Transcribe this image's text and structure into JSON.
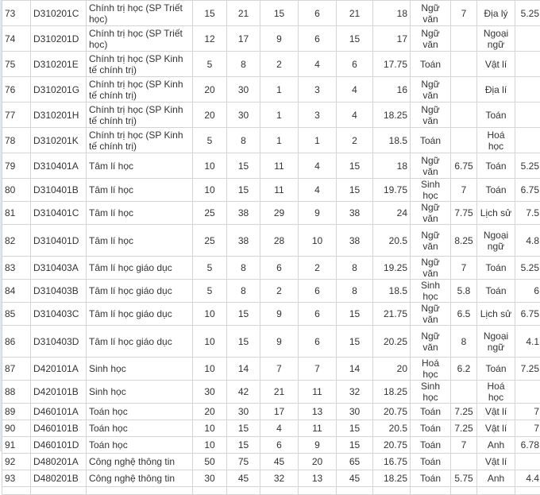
{
  "rows": [
    [
      "73",
      "D310201C",
      "Chính trị học (SP Triết học)",
      "15",
      "21",
      "15",
      "6",
      "21",
      "18",
      "Ngữ văn",
      "7",
      "Địa lý",
      "5.25"
    ],
    [
      "74",
      "D310201D",
      "Chính trị học (SP Triết học)",
      "12",
      "17",
      "9",
      "6",
      "15",
      "17",
      "Ngữ văn",
      "",
      "Ngoại ngữ",
      ""
    ],
    [
      "75",
      "D310201E",
      "Chính trị học (SP Kinh tế chính trị)",
      "5",
      "8",
      "2",
      "4",
      "6",
      "17.75",
      "Toán",
      "",
      "Vật lí",
      ""
    ],
    [
      "76",
      "D310201G",
      "Chính trị học (SP Kinh tế chính trị)",
      "20",
      "30",
      "1",
      "3",
      "4",
      "16",
      "Ngữ văn",
      "",
      "Địa lí",
      ""
    ],
    [
      "77",
      "D310201H",
      "Chính trị học (SP Kinh tế chính trị)",
      "20",
      "30",
      "1",
      "3",
      "4",
      "18.25",
      "Ngữ văn",
      "",
      "Toán",
      ""
    ],
    [
      "78",
      "D310201K",
      "Chính trị học (SP Kinh tế chính trị)",
      "5",
      "8",
      "1",
      "1",
      "2",
      "18.5",
      "Toán",
      "",
      "Hoá học",
      ""
    ],
    [
      "79",
      "D310401A",
      "Tâm lí học",
      "10",
      "15",
      "11",
      "4",
      "15",
      "18",
      "Ngữ văn",
      "6.75",
      "Toán",
      "5.25"
    ],
    [
      "80",
      "D310401B",
      "Tâm lí học",
      "10",
      "15",
      "11",
      "4",
      "15",
      "19.75",
      "Sinh học",
      "7",
      "Toán",
      "6.75"
    ],
    [
      "81",
      "D310401C",
      "Tâm lí học",
      "25",
      "38",
      "29",
      "9",
      "38",
      "24",
      "Ngữ văn",
      "7.75",
      "Lịch sử",
      "7.5"
    ],
    [
      "82",
      "D310401D",
      "Tâm lí học",
      "25",
      "38",
      "28",
      "10",
      "38",
      "20.5",
      "Ngữ văn",
      "8.25",
      "Ngoại ngữ",
      "4.8"
    ],
    [
      "83",
      "D310403A",
      "Tâm lí học giáo dục",
      "5",
      "8",
      "6",
      "2",
      "8",
      "19.25",
      "Ngữ văn",
      "7",
      "Toán",
      "5.25"
    ],
    [
      "84",
      "D310403B",
      "Tâm lí học giáo dục",
      "5",
      "8",
      "2",
      "6",
      "8",
      "18.5",
      "Sinh học",
      "5.8",
      "Toán",
      "6"
    ],
    [
      "85",
      "D310403C",
      "Tâm lí học giáo dục",
      "10",
      "15",
      "9",
      "6",
      "15",
      "21.75",
      "Ngữ văn",
      "6.5",
      "Lịch sử",
      "6.75"
    ],
    [
      "86",
      "D310403D",
      "Tâm lí học giáo dục",
      "10",
      "15",
      "9",
      "6",
      "15",
      "20.25",
      "Ngữ văn",
      "8",
      "Ngoại ngữ",
      "4.1"
    ],
    [
      "87",
      "D420101A",
      "Sinh học",
      "10",
      "14",
      "7",
      "7",
      "14",
      "20",
      "Hoá học",
      "6.2",
      "Toán",
      "7.25"
    ],
    [
      "88",
      "D420101B",
      "Sinh học",
      "30",
      "42",
      "21",
      "11",
      "32",
      "18.25",
      "Sinh học",
      "",
      "Hoá học",
      ""
    ],
    [
      "89",
      "D460101A",
      "Toán học",
      "20",
      "30",
      "17",
      "13",
      "30",
      "20.75",
      "Toán",
      "7.25",
      "Vật lí",
      "7"
    ],
    [
      "90",
      "D460101B",
      "Toán học",
      "10",
      "15",
      "4",
      "11",
      "15",
      "20.5",
      "Toán",
      "7.25",
      "Vật lí",
      "7"
    ],
    [
      "91",
      "D460101D",
      "Toán học",
      "10",
      "15",
      "6",
      "9",
      "15",
      "20.75",
      "Toán",
      "7",
      "Anh",
      "6.78"
    ],
    [
      "92",
      "D480201A",
      "Công nghệ thông tin",
      "50",
      "75",
      "45",
      "20",
      "65",
      "16.75",
      "Toán",
      "",
      "Vật lí",
      ""
    ],
    [
      "93",
      "D480201B",
      "Công nghệ thông tin",
      "30",
      "45",
      "32",
      "13",
      "45",
      "18.25",
      "Toán",
      "5.75",
      "Anh",
      "4.4"
    ]
  ]
}
